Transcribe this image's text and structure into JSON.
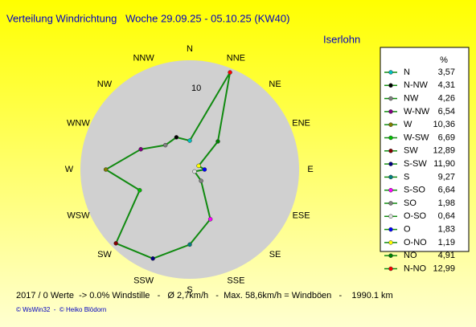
{
  "chart_data": {
    "type": "radar",
    "title": "Verteilung Windrichtung   Woche 29.09.25 - 05.10.25 (KW40)",
    "subtitle": "Iserlohn",
    "categories": [
      "N",
      "NNW",
      "NW",
      "WNW",
      "W",
      "WSW",
      "SW",
      "SSW",
      "S",
      "SSE",
      "SE",
      "ESE",
      "E",
      "ENE",
      "NE",
      "NNE"
    ],
    "legend_title": "%",
    "legend_names": [
      "N",
      "N-NW",
      "NW",
      "W-NW",
      "W",
      "W-SW",
      "SW",
      "S-SW",
      "S",
      "S-SO",
      "SO",
      "O-SO",
      "O",
      "O-NO",
      "NO",
      "N-NO"
    ],
    "values": [
      3.57,
      4.31,
      4.26,
      6.54,
      10.36,
      6.69,
      12.89,
      11.9,
      9.27,
      6.64,
      1.98,
      0.64,
      1.83,
      1.19,
      4.91,
      12.99
    ],
    "value_labels": [
      "3,57",
      "4,31",
      "4,26",
      "6,54",
      "10,36",
      "6,69",
      "12,89",
      "11,90",
      "9,27",
      "6,64",
      "1,98",
      "0,64",
      "1,83",
      "1,19",
      "4,91",
      "12,99"
    ],
    "marker_colors": [
      "#00c0c0",
      "#000000",
      "#808080",
      "#800080",
      "#808000",
      "#00c000",
      "#800000",
      "#000080",
      "#008080",
      "#ff00ff",
      "#808080",
      "#e0e0e0",
      "#0000ff",
      "#ffff00",
      "#008000",
      "#ff0000"
    ],
    "line_color": "#108a10",
    "rlim": [
      0,
      13.5
    ],
    "rticks": [
      10
    ],
    "footer": "2017 / 0 Werte  -> 0.0% Windstille   -   Ø 2,7km/h   -  Max. 58,6km/h = Windböen   -    1990.1 km",
    "credits": "© WsWin32  -  © Heiko Blödorn"
  }
}
